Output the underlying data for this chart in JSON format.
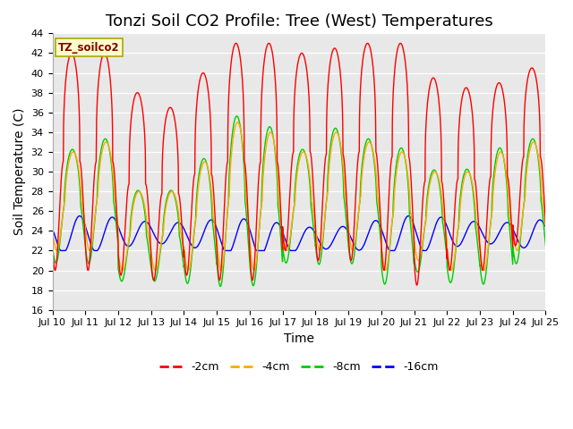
{
  "title": "Tonzi Soil CO2 Profile: Tree (West) Temperatures",
  "ylabel": "Soil Temperature (C)",
  "xlabel": "Time",
  "legend_label": "TZ_soilco2",
  "series_labels": [
    "-2cm",
    "-4cm",
    "-8cm",
    "-16cm"
  ],
  "series_colors": [
    "#ff0000",
    "#ffaa00",
    "#00cc00",
    "#0000ff"
  ],
  "ylim": [
    16,
    44
  ],
  "yticks": [
    16,
    18,
    20,
    22,
    24,
    26,
    28,
    30,
    32,
    34,
    36,
    38,
    40,
    42,
    44
  ],
  "xtick_labels": [
    "Jul 10",
    "Jul 11",
    "Jul 12",
    "Jul 13",
    "Jul 14",
    "Jul 15",
    "Jul 16",
    "Jul 17",
    "Jul 18",
    "Jul 19",
    "Jul 20",
    "Jul 21",
    "Jul 22",
    "Jul 23",
    "Jul 24",
    "Jul 25"
  ],
  "plot_bg_color": "#e8e8e8",
  "title_fontsize": 13,
  "axis_fontsize": 10,
  "legend_box_facecolor": "#ffffcc",
  "legend_box_edgecolor": "#aaa800",
  "legend_text_color": "#880000"
}
